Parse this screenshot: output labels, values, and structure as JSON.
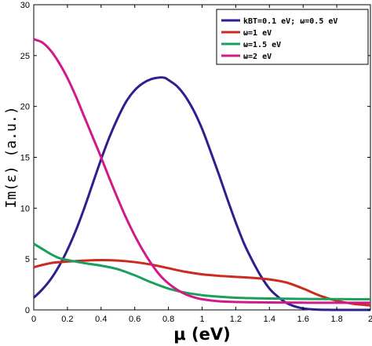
{
  "chart_data": {
    "type": "line",
    "xlabel": "μ (eV)",
    "ylabel": "Im(ε) (a.u.)",
    "xlim": [
      0,
      2
    ],
    "ylim": [
      0,
      30
    ],
    "xticks": [
      0,
      0.2,
      0.4,
      0.6,
      0.8,
      1,
      1.2,
      1.4,
      1.6,
      1.8,
      2
    ],
    "xtick_labels": [
      "0",
      "0.2",
      "0.4",
      "0.6",
      "0.8",
      "1",
      "1.2",
      "1.4",
      "1.6",
      "1.8",
      "2"
    ],
    "yticks": [
      0,
      5,
      10,
      15,
      20,
      25,
      30
    ],
    "ytick_labels": [
      "0",
      "5",
      "10",
      "15",
      "20",
      "25",
      "30"
    ],
    "grid": false,
    "legend_position": "top-right",
    "series": [
      {
        "name": "kBT=0.1 eV; ω=0.5 eV",
        "color": "#2e1f8f",
        "x": [
          0,
          0.05,
          0.1,
          0.15,
          0.2,
          0.25,
          0.3,
          0.35,
          0.4,
          0.45,
          0.5,
          0.55,
          0.6,
          0.65,
          0.7,
          0.75,
          0.78,
          0.8,
          0.85,
          0.9,
          0.95,
          1.0,
          1.05,
          1.1,
          1.15,
          1.2,
          1.25,
          1.3,
          1.35,
          1.4,
          1.45,
          1.5,
          1.55,
          1.6,
          1.65,
          1.7,
          1.75,
          1.8,
          1.85,
          1.9,
          1.95,
          2.0
        ],
        "y": [
          1.2,
          2.0,
          3.0,
          4.3,
          5.9,
          7.8,
          10.0,
          12.4,
          14.8,
          17.0,
          18.9,
          20.5,
          21.6,
          22.3,
          22.7,
          22.85,
          22.8,
          22.6,
          22.0,
          21.0,
          19.6,
          17.8,
          15.6,
          13.3,
          10.9,
          8.6,
          6.5,
          4.8,
          3.3,
          2.1,
          1.3,
          0.7,
          0.35,
          0.15,
          0.06,
          0.02,
          0.01,
          0.0,
          0.0,
          0.0,
          0.0,
          0.0
        ]
      },
      {
        "name": "ω=1 eV",
        "color": "#cc2a1e",
        "x": [
          0,
          0.1,
          0.2,
          0.3,
          0.4,
          0.5,
          0.6,
          0.7,
          0.8,
          0.9,
          1.0,
          1.1,
          1.2,
          1.3,
          1.4,
          1.5,
          1.6,
          1.7,
          1.8,
          1.9,
          2.0
        ],
        "y": [
          4.2,
          4.6,
          4.75,
          4.85,
          4.9,
          4.85,
          4.7,
          4.45,
          4.1,
          3.75,
          3.5,
          3.35,
          3.25,
          3.15,
          3.0,
          2.7,
          2.1,
          1.4,
          0.9,
          0.6,
          0.45
        ]
      },
      {
        "name": "ω=1.5 eV",
        "color": "#1aa05a",
        "x": [
          0,
          0.05,
          0.1,
          0.15,
          0.2,
          0.3,
          0.4,
          0.5,
          0.6,
          0.7,
          0.8,
          0.9,
          1.0,
          1.1,
          1.2,
          1.3,
          1.4,
          1.5,
          1.6,
          1.7,
          1.8,
          1.9,
          2.0
        ],
        "y": [
          6.5,
          6.0,
          5.5,
          5.1,
          4.9,
          4.6,
          4.35,
          4.0,
          3.4,
          2.7,
          2.1,
          1.7,
          1.45,
          1.3,
          1.2,
          1.15,
          1.12,
          1.1,
          1.08,
          1.07,
          1.06,
          1.05,
          1.05
        ]
      },
      {
        "name": "ω=2 eV",
        "color": "#d1198a",
        "x": [
          0,
          0.05,
          0.1,
          0.15,
          0.2,
          0.25,
          0.3,
          0.35,
          0.4,
          0.45,
          0.5,
          0.55,
          0.6,
          0.65,
          0.7,
          0.75,
          0.8,
          0.85,
          0.9,
          0.95,
          1.0,
          1.1,
          1.2,
          1.3,
          1.4,
          1.5,
          1.6,
          1.7,
          1.8,
          1.9,
          2.0
        ],
        "y": [
          26.6,
          26.3,
          25.5,
          24.3,
          22.8,
          21.0,
          19.0,
          17.0,
          15.0,
          12.9,
          10.9,
          9.0,
          7.3,
          5.8,
          4.5,
          3.4,
          2.6,
          2.0,
          1.55,
          1.25,
          1.05,
          0.85,
          0.78,
          0.75,
          0.73,
          0.72,
          0.71,
          0.7,
          0.7,
          0.7,
          0.7
        ]
      }
    ]
  }
}
